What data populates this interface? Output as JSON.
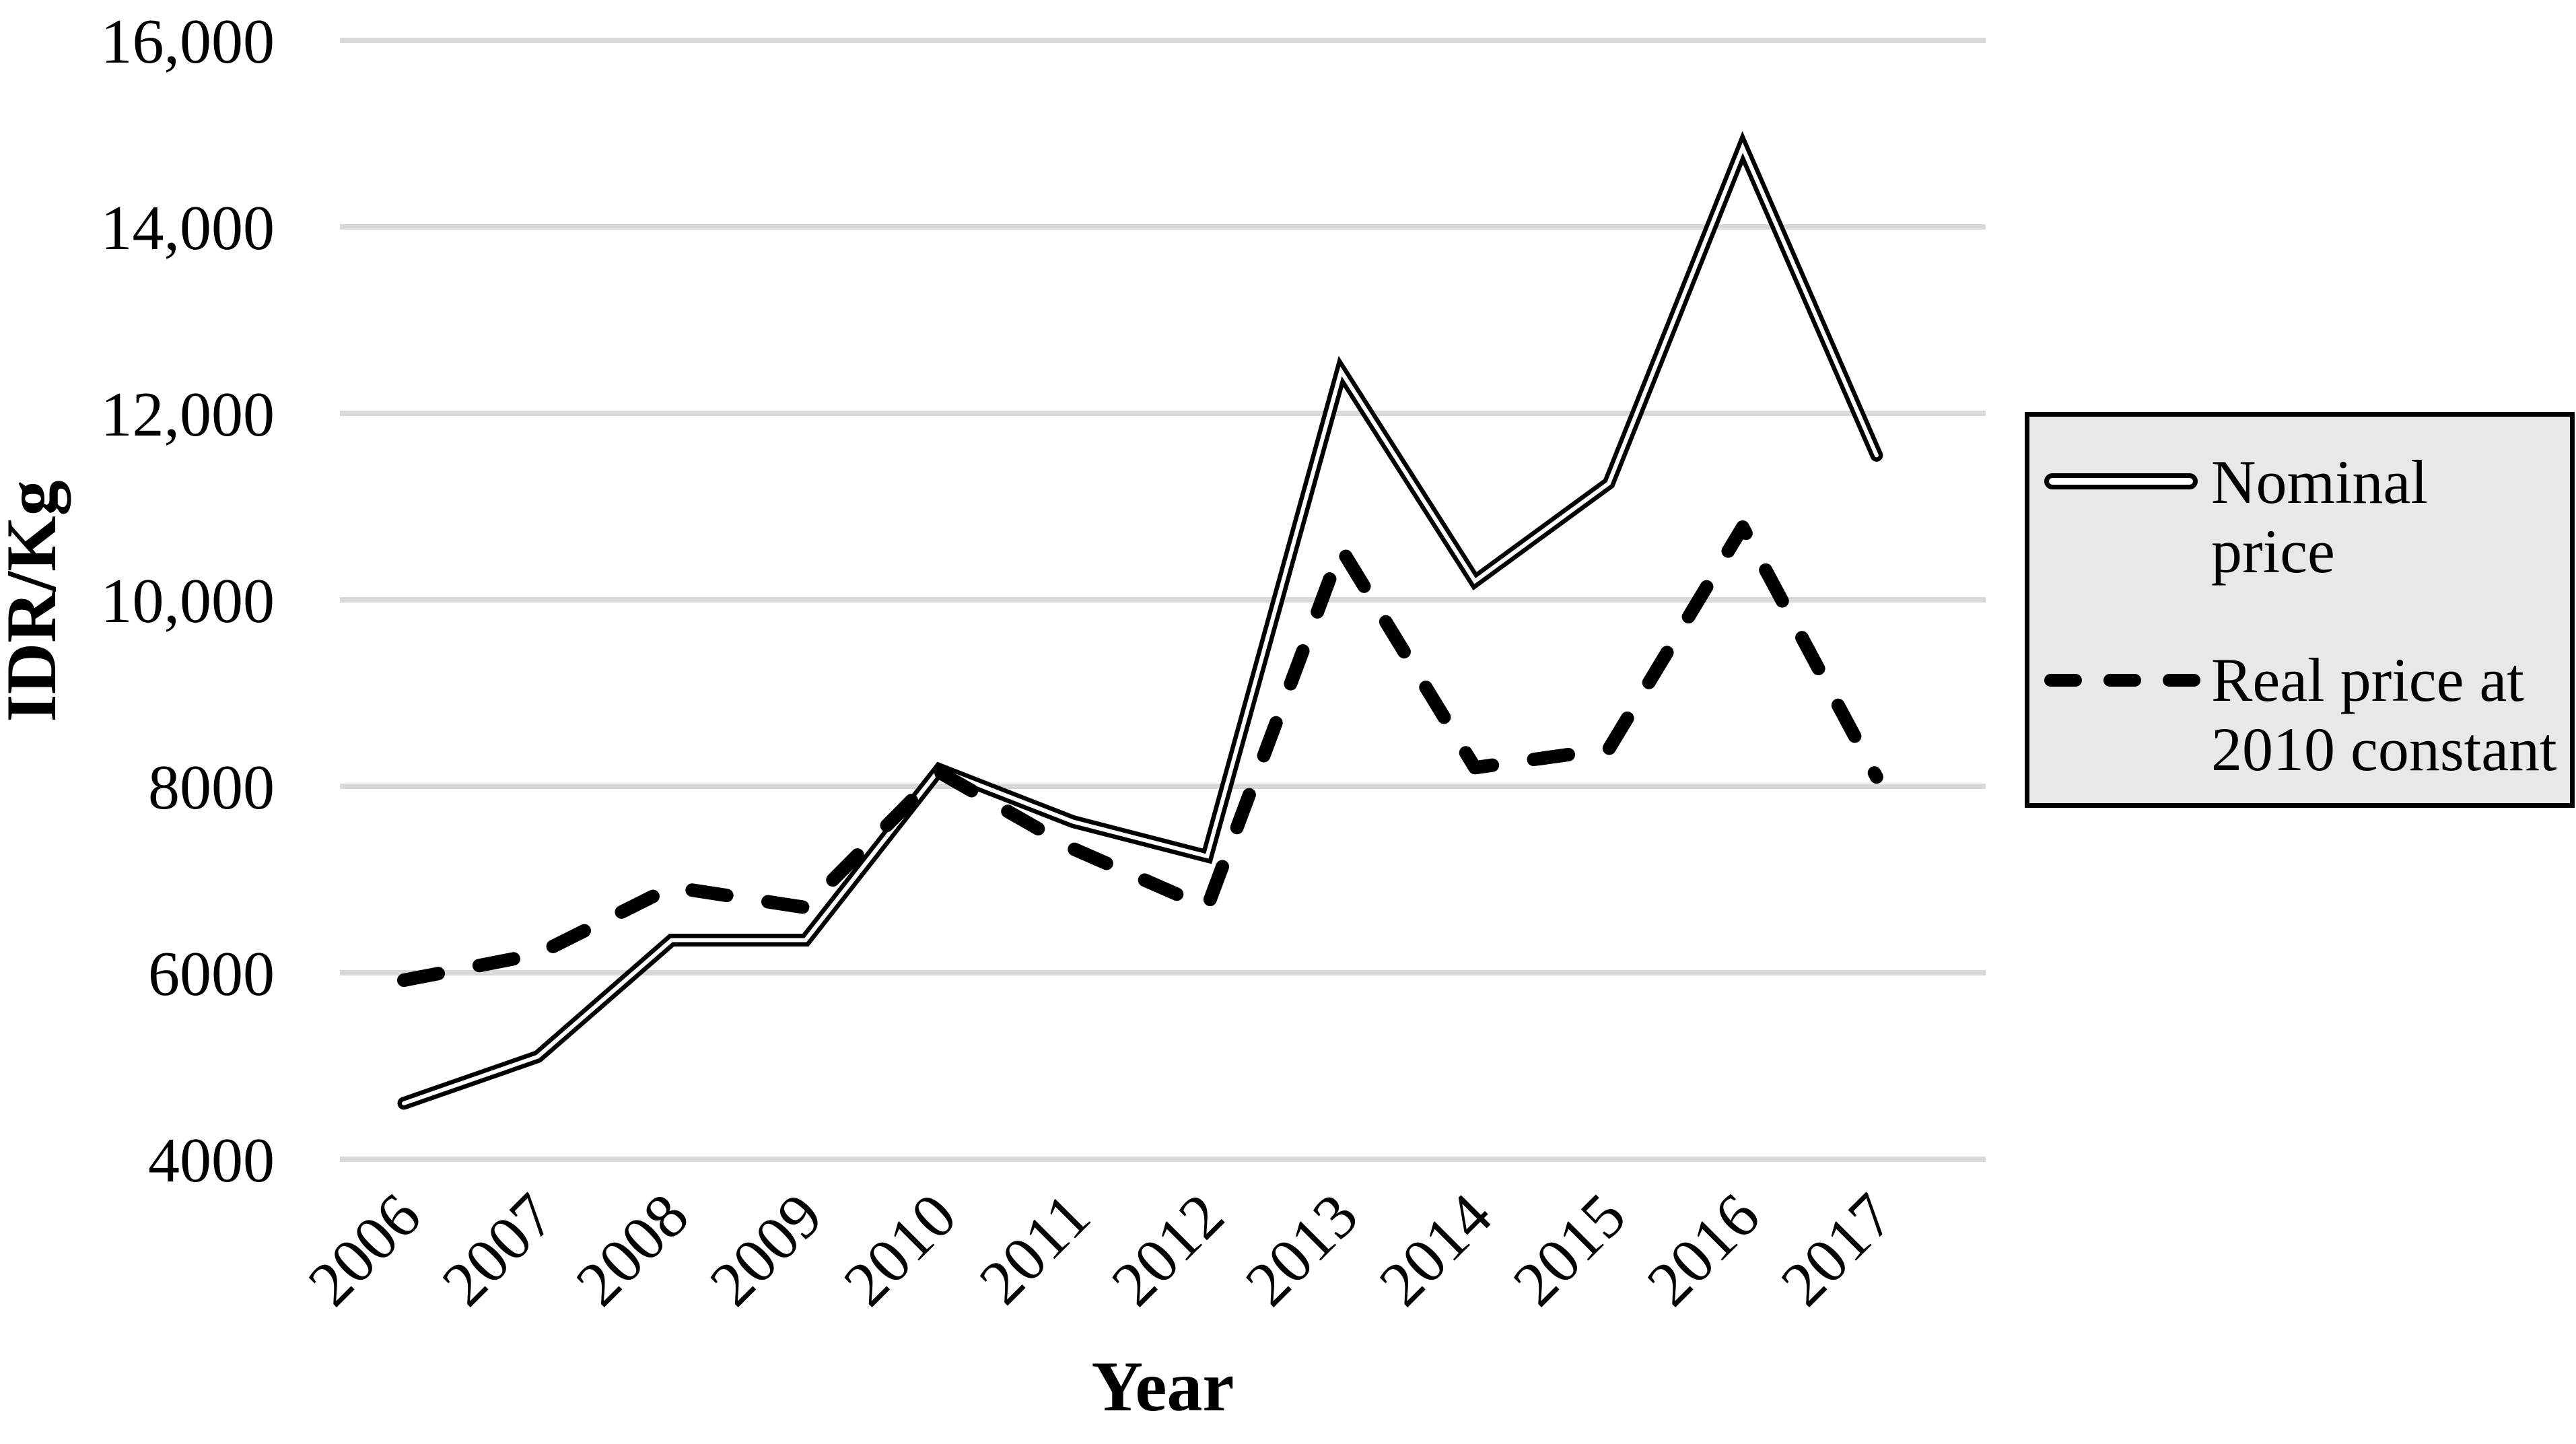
{
  "chart_data": {
    "type": "line",
    "x": [
      "2006",
      "2007",
      "2008",
      "2009",
      "2010",
      "2011",
      "2012",
      "2013",
      "2014",
      "2015",
      "2016",
      "2017"
    ],
    "series": [
      {
        "name": "Nominal price",
        "style": "double-solid",
        "values": [
          4600,
          5100,
          6350,
          6350,
          8180,
          7620,
          7250,
          12450,
          10200,
          11250,
          14850,
          11550
        ]
      },
      {
        "name": "Real price at 2010 constant",
        "style": "dashed",
        "values": [
          5920,
          6200,
          6920,
          6700,
          8150,
          7330,
          6700,
          10550,
          8200,
          8400,
          10780,
          8100
        ]
      }
    ],
    "title": "",
    "xlabel": "Year",
    "ylabel": "IDR/Kg",
    "ylim": [
      4000,
      16000
    ],
    "ytick_step": 2000,
    "ytick_labels": [
      "4000",
      "6000",
      "8000",
      "10,000",
      "12,000",
      "14,000",
      "16,000"
    ],
    "grid": true,
    "legend_position": "right"
  },
  "colors": {
    "line": "#000000",
    "grid": "#d9d9d9",
    "legend_bg": "#e8e8e8",
    "legend_border": "#000000",
    "text": "#000000"
  },
  "legend": {
    "items": [
      {
        "label": "Nominal price",
        "symbol": "double-line"
      },
      {
        "label": "Real price at 2010 constant",
        "symbol": "dashed-line"
      }
    ]
  }
}
